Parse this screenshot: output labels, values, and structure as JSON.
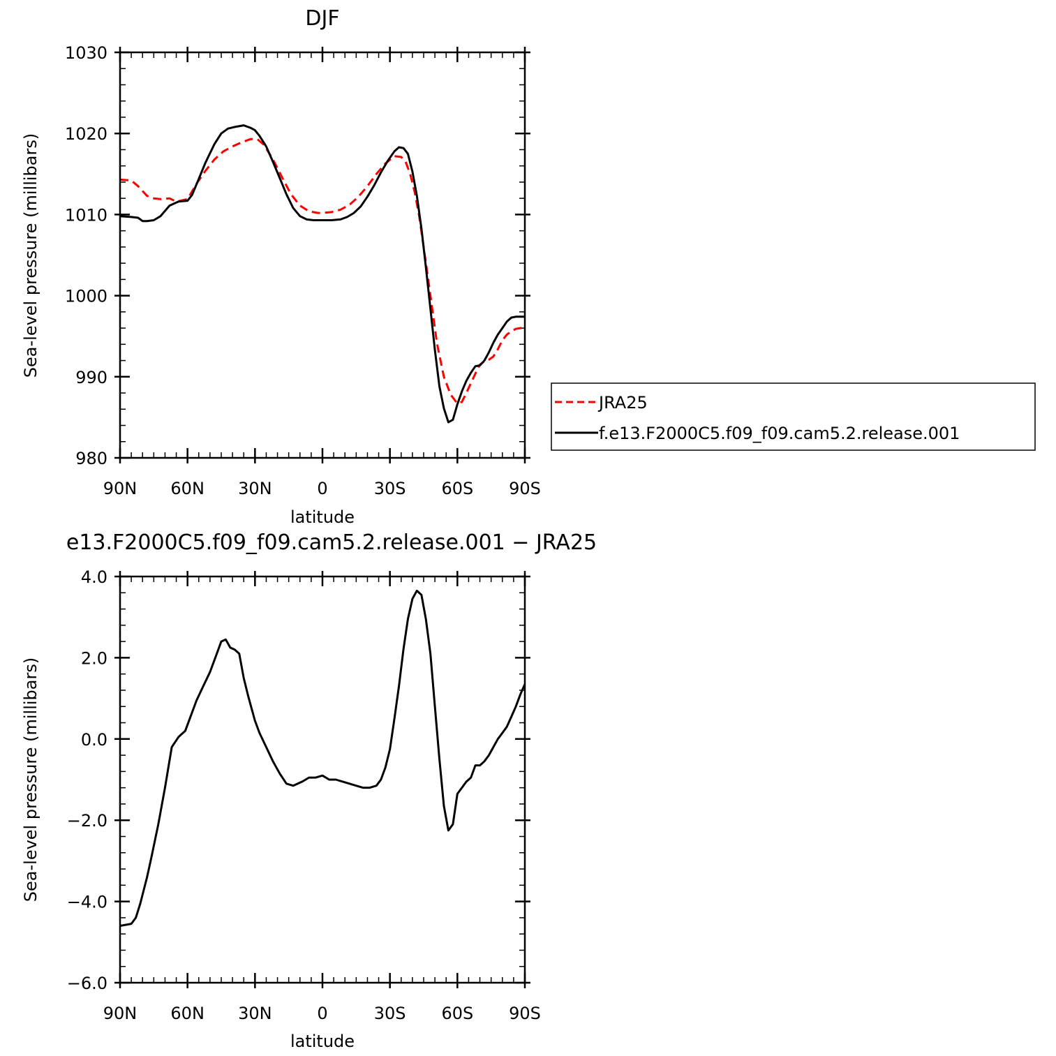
{
  "chart_data": [
    {
      "type": "line",
      "title": "DJF",
      "xlabel": "latitude",
      "ylabel": "Sea-level pressure (millibars)",
      "xlim": [
        90,
        -90
      ],
      "ylim": [
        980,
        1030
      ],
      "x_ticks": [
        90,
        60,
        30,
        0,
        -30,
        -60,
        -90
      ],
      "x_tick_labels": [
        "90N",
        "60N",
        "30N",
        "0",
        "30S",
        "60S",
        "90S"
      ],
      "y_ticks": [
        980,
        990,
        1000,
        1010,
        1020,
        1030
      ],
      "y_tick_labels": [
        "980",
        "990",
        "1000",
        "1010",
        "1020",
        "1030"
      ],
      "legend_position": "right",
      "series": [
        {
          "name": "JRA25",
          "color": "#ff0000",
          "style": "dashed",
          "x": [
            90,
            85,
            82,
            78,
            75,
            72,
            68,
            65,
            60,
            56,
            52,
            48,
            44,
            40,
            36,
            32,
            29,
            26,
            22,
            18,
            14,
            10,
            6,
            2,
            0,
            -4,
            -8,
            -12,
            -16,
            -20,
            -24,
            -28,
            -32,
            -35,
            -37,
            -39,
            -41,
            -43,
            -45,
            -48,
            -51,
            -54,
            -57,
            -60,
            -62,
            -64,
            -66,
            -68,
            -70,
            -72,
            -74,
            -76,
            -78,
            -80,
            -82,
            -84,
            -86,
            -88,
            -90
          ],
          "values": [
            1014.3,
            1014.2,
            1013.5,
            1012.3,
            1012.0,
            1011.9,
            1012.0,
            1011.6,
            1011.9,
            1013.8,
            1015.4,
            1016.8,
            1017.8,
            1018.4,
            1018.9,
            1019.3,
            1019.3,
            1018.6,
            1016.8,
            1014.6,
            1012.5,
            1011.1,
            1010.4,
            1010.2,
            1010.2,
            1010.3,
            1010.6,
            1011.2,
            1012.2,
            1013.5,
            1015.0,
            1016.3,
            1017.2,
            1017.1,
            1016.5,
            1015.0,
            1012.8,
            1009.8,
            1006.0,
            1000.0,
            994.0,
            990.0,
            987.8,
            986.7,
            986.9,
            988.0,
            989.2,
            990.4,
            991.5,
            991.9,
            992.1,
            992.5,
            993.4,
            994.5,
            995.2,
            995.6,
            995.9,
            996.0,
            996.1
          ]
        },
        {
          "name": "f.e13.F2000C5.f09_f09.cam5.2.release.001",
          "color": "#000000",
          "style": "solid",
          "x": [
            90,
            85,
            82,
            80,
            78,
            75,
            72,
            68,
            64,
            60,
            58,
            55,
            52,
            48,
            45,
            42,
            39,
            35,
            32,
            30,
            28,
            25,
            22,
            19,
            16,
            13,
            10,
            7,
            4,
            0,
            -4,
            -8,
            -11,
            -14,
            -17,
            -20,
            -23,
            -26,
            -29,
            -32,
            -34,
            -36,
            -38,
            -40,
            -42,
            -44,
            -46,
            -48,
            -50,
            -52,
            -54,
            -56,
            -58,
            -60,
            -62,
            -64,
            -66,
            -68,
            -70,
            -72,
            -74,
            -76,
            -78,
            -80,
            -82,
            -84,
            -86,
            -88,
            -90
          ],
          "values": [
            1009.8,
            1009.7,
            1009.6,
            1009.2,
            1009.2,
            1009.3,
            1009.8,
            1011.1,
            1011.6,
            1011.7,
            1012.4,
            1014.4,
            1016.4,
            1018.7,
            1020.0,
            1020.6,
            1020.8,
            1021.0,
            1020.7,
            1020.4,
            1019.7,
            1018.4,
            1016.5,
            1014.5,
            1012.5,
            1010.8,
            1009.8,
            1009.4,
            1009.3,
            1009.3,
            1009.3,
            1009.4,
            1009.7,
            1010.2,
            1011.0,
            1012.2,
            1013.6,
            1015.2,
            1016.6,
            1017.8,
            1018.3,
            1018.2,
            1017.5,
            1015.3,
            1012.3,
            1008.3,
            1003.5,
            998.4,
            993.3,
            988.8,
            986.1,
            984.4,
            984.7,
            986.6,
            988.2,
            989.5,
            990.5,
            991.3,
            991.4,
            992.0,
            993.0,
            994.2,
            995.2,
            996.0,
            996.8,
            997.3,
            997.4,
            997.4,
            997.4
          ]
        }
      ]
    },
    {
      "type": "line",
      "title": "e13.F2000C5.f09_f09.cam5.2.release.001 − JRA25",
      "xlabel": "latitude",
      "ylabel": "Sea-level pressure (millibars)",
      "xlim": [
        90,
        -90
      ],
      "ylim": [
        -6.0,
        4.0
      ],
      "x_ticks": [
        90,
        60,
        30,
        0,
        -30,
        -60,
        -90
      ],
      "x_tick_labels": [
        "90N",
        "60N",
        "30N",
        "0",
        "30S",
        "60S",
        "90S"
      ],
      "y_ticks": [
        -6,
        -4,
        -2,
        0,
        2,
        4
      ],
      "y_tick_labels": [
        "−6.0",
        "−4.0",
        "−2.0",
        "0.0",
        "2.0",
        "4.0"
      ],
      "series": [
        {
          "color": "#000000",
          "style": "solid",
          "x": [
            90,
            85,
            83,
            81,
            78,
            76,
            73,
            70,
            67,
            64,
            61,
            59,
            56,
            53,
            50,
            47,
            45,
            43,
            41,
            39,
            37,
            35,
            33,
            30,
            28,
            25,
            22,
            19,
            16,
            13,
            11,
            9,
            6,
            3,
            0,
            -3,
            -6,
            -9,
            -12,
            -15,
            -18,
            -21,
            -24,
            -26,
            -28,
            -30,
            -32,
            -34,
            -36,
            -38,
            -40,
            -42,
            -44,
            -46,
            -48,
            -50,
            -52,
            -54,
            -56,
            -58,
            -60,
            -62,
            -64,
            -66,
            -68,
            -70,
            -72,
            -74,
            -76,
            -78,
            -80,
            -82,
            -84,
            -86,
            -88,
            -90
          ],
          "values": [
            -4.6,
            -4.55,
            -4.4,
            -4.05,
            -3.4,
            -2.9,
            -2.1,
            -1.2,
            -0.2,
            0.05,
            0.2,
            0.5,
            0.95,
            1.3,
            1.65,
            2.1,
            2.4,
            2.45,
            2.25,
            2.2,
            2.1,
            1.5,
            1.05,
            0.45,
            0.15,
            -0.2,
            -0.55,
            -0.85,
            -1.1,
            -1.15,
            -1.1,
            -1.05,
            -0.95,
            -0.95,
            -0.9,
            -1.0,
            -1.0,
            -1.05,
            -1.1,
            -1.15,
            -1.2,
            -1.2,
            -1.15,
            -1.0,
            -0.7,
            -0.25,
            0.5,
            1.3,
            2.2,
            2.95,
            3.45,
            3.65,
            3.55,
            2.95,
            2.1,
            0.8,
            -0.5,
            -1.65,
            -2.25,
            -2.1,
            -1.35,
            -1.2,
            -1.05,
            -0.95,
            -0.65,
            -0.65,
            -0.55,
            -0.4,
            -0.2,
            0.0,
            0.15,
            0.3,
            0.55,
            0.8,
            1.1,
            1.35
          ]
        }
      ]
    }
  ]
}
